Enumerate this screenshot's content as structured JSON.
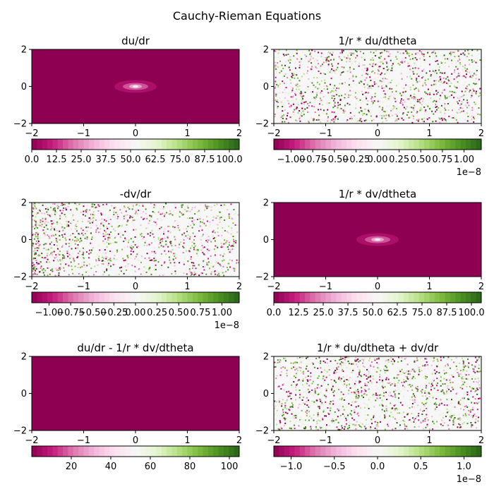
{
  "figure_title": "Cauchy-Rieman Equations",
  "colormap": [
    "#8e0152",
    "#c51b7d",
    "#de77ae",
    "#f1b6da",
    "#fde0ef",
    "#f7f7f7",
    "#e6f5d0",
    "#b8e186",
    "#7fbc41",
    "#4d9221",
    "#276419"
  ],
  "chart_data": [
    {
      "type": "heatmap",
      "title": "du/dr",
      "field": "magnitude-peak",
      "x_ticks": [
        "−2",
        "−1",
        "0",
        "1",
        "2"
      ],
      "y_ticks": [
        "2",
        "0",
        "−2"
      ],
      "xlim": [
        -2,
        2
      ],
      "ylim": [
        -2,
        2
      ],
      "colorbar": {
        "range": [
          0,
          105
        ],
        "ticks": [
          0,
          12.5,
          25,
          37.5,
          50,
          62.5,
          75,
          87.5,
          100
        ],
        "tick_labels": [
          "0.0",
          "12.5",
          "25.0",
          "37.5",
          "50.0",
          "62.5",
          "75.0",
          "87.5",
          "100.0"
        ],
        "offset": ""
      }
    },
    {
      "type": "heatmap",
      "title": "1/r * du/dtheta",
      "field": "noise",
      "x_ticks": [
        "−2",
        "−1",
        "0",
        "1",
        "2"
      ],
      "y_ticks": [
        "2",
        "0",
        "−2"
      ],
      "xlim": [
        -2,
        2
      ],
      "ylim": [
        -2,
        2
      ],
      "colorbar": {
        "range": [
          -1.2,
          1.2
        ],
        "ticks": [
          -1,
          -0.75,
          -0.5,
          -0.25,
          0,
          0.25,
          0.5,
          0.75,
          1
        ],
        "tick_labels": [
          "−1.00",
          "−0.75",
          "−0.50",
          "−0.25",
          "0.00",
          "0.25",
          "0.50",
          "0.75",
          "1.00"
        ],
        "offset": "1e−8"
      }
    },
    {
      "type": "heatmap",
      "title": "-dv/dr",
      "field": "noise-left",
      "x_ticks": [
        "−2",
        "−1",
        "0",
        "1",
        "2"
      ],
      "y_ticks": [
        "2",
        "0",
        "−2"
      ],
      "xlim": [
        -2,
        2
      ],
      "ylim": [
        -2,
        2
      ],
      "colorbar": {
        "range": [
          -1.2,
          1.2
        ],
        "ticks": [
          -1,
          -0.75,
          -0.5,
          -0.25,
          0,
          0.25,
          0.5,
          0.75,
          1
        ],
        "tick_labels": [
          "−1.00",
          "−0.75",
          "−0.50",
          "−0.25",
          "0.00",
          "0.25",
          "0.50",
          "0.75",
          "1.00"
        ],
        "offset": "1e−8"
      }
    },
    {
      "type": "heatmap",
      "title": "1/r * dv/dtheta",
      "field": "magnitude-peak",
      "x_ticks": [
        "−2",
        "−1",
        "0",
        "1",
        "2"
      ],
      "y_ticks": [
        "2",
        "0",
        "−2"
      ],
      "xlim": [
        -2,
        2
      ],
      "ylim": [
        -2,
        2
      ],
      "colorbar": {
        "range": [
          0,
          105
        ],
        "ticks": [
          0,
          12.5,
          25,
          37.5,
          50,
          62.5,
          75,
          87.5,
          100
        ],
        "tick_labels": [
          "0.0",
          "12.5",
          "25.0",
          "37.5",
          "50.0",
          "62.5",
          "75.0",
          "87.5",
          "100.0"
        ],
        "offset": ""
      }
    },
    {
      "type": "heatmap",
      "title": "du/dr - 1/r * dv/dtheta",
      "field": "uniform-low",
      "x_ticks": [
        "−2",
        "−1",
        "0",
        "1",
        "2"
      ],
      "y_ticks": [
        "2",
        "0",
        "−2"
      ],
      "xlim": [
        -2,
        2
      ],
      "ylim": [
        -2,
        2
      ],
      "colorbar": {
        "range": [
          0,
          105
        ],
        "ticks": [
          20,
          40,
          60,
          80,
          100
        ],
        "tick_labels": [
          "20",
          "40",
          "60",
          "80",
          "100"
        ],
        "offset": ""
      }
    },
    {
      "type": "heatmap",
      "title": "1/r * du/dtheta + dv/dr",
      "field": "noise",
      "x_ticks": [
        "−2",
        "−1",
        "0",
        "1",
        "2"
      ],
      "y_ticks": [
        "2",
        "0",
        "−2"
      ],
      "xlim": [
        -2,
        2
      ],
      "ylim": [
        -2,
        2
      ],
      "colorbar": {
        "range": [
          -1.2,
          1.2
        ],
        "ticks": [
          -1,
          -0.5,
          0,
          0.5,
          1
        ],
        "tick_labels": [
          "−1.0",
          "−0.5",
          "0.0",
          "0.5",
          "1.0"
        ],
        "offset": "1e−8"
      }
    }
  ]
}
